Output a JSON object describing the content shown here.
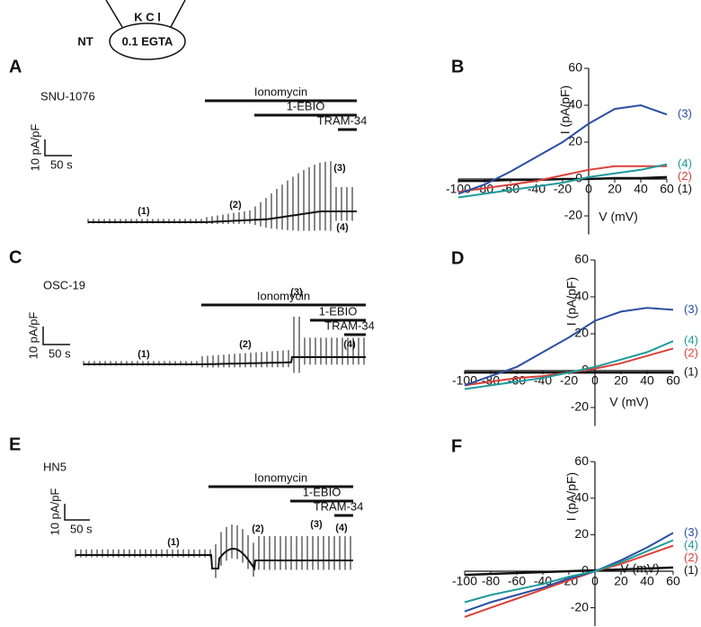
{
  "schematic": {
    "solution": "K C l",
    "pipette": "0.1 EGTA",
    "side": "NT"
  },
  "traces": [
    {
      "panel": "A",
      "cell": "SNU-1076",
      "scale_y": "10 pA/pF",
      "scale_x": "50 s",
      "drugs": [
        "Ionomycin",
        "1-EBIO",
        "TRAM-34"
      ],
      "markers": [
        "(1)",
        "(2)",
        "(3)",
        "(4)"
      ]
    },
    {
      "panel": "C",
      "cell": "OSC-19",
      "scale_y": "10 pA/pF",
      "scale_x": "50 s",
      "drugs": [
        "Ionomycin",
        "1-EBIO",
        "TRAM-34"
      ],
      "markers": [
        "(1)",
        "(2)",
        "(3)",
        "(4)"
      ]
    },
    {
      "panel": "E",
      "cell": "HN5",
      "scale_y": "10 pA/pF",
      "scale_x": "50 s",
      "drugs": [
        "Ionomycin",
        "1-EBIO",
        "TRAM-34"
      ],
      "markers": [
        "(1)",
        "(2)",
        "(3)",
        "(4)"
      ]
    }
  ],
  "chart_data": [
    {
      "type": "line",
      "panel": "B",
      "ylabel": "I (pA/pF)",
      "xlabel": "V (mV)",
      "xlim": [
        -100,
        60
      ],
      "ylim": [
        -30,
        60
      ],
      "xticks": [
        -100,
        -80,
        -60,
        -40,
        -20,
        0,
        20,
        40,
        60
      ],
      "yticks": [
        -20,
        0,
        20,
        40,
        60
      ],
      "x": [
        -100,
        -80,
        -60,
        -40,
        -20,
        0,
        20,
        40,
        60
      ],
      "series": [
        {
          "name": "(1)",
          "color": "#111111",
          "values": [
            -1,
            -1,
            -0.5,
            -0.5,
            0,
            0,
            0.5,
            0.5,
            1
          ]
        },
        {
          "name": "(2)",
          "color": "#d9413a",
          "values": [
            -7,
            -5,
            -3,
            -1,
            2,
            5,
            7,
            7,
            7
          ]
        },
        {
          "name": "(3)",
          "color": "#2b4ea2",
          "values": [
            -8,
            -3,
            4,
            12,
            20,
            30,
            38,
            40,
            35
          ]
        },
        {
          "name": "(4)",
          "color": "#1f9a9a",
          "values": [
            -10,
            -8,
            -6,
            -4,
            -2,
            1,
            3,
            5,
            8
          ]
        }
      ]
    },
    {
      "type": "line",
      "panel": "D",
      "ylabel": "I (pA/pF)",
      "xlabel": "V (mV)",
      "xlim": [
        -100,
        60
      ],
      "ylim": [
        -30,
        60
      ],
      "xticks": [
        -100,
        -80,
        -60,
        -40,
        -20,
        0,
        20,
        40,
        60
      ],
      "yticks": [
        -20,
        0,
        20,
        40,
        60
      ],
      "x": [
        -100,
        -80,
        -60,
        -40,
        -20,
        0,
        20,
        40,
        60
      ],
      "series": [
        {
          "name": "(1)",
          "color": "#111111",
          "values": [
            -1,
            -1,
            -1,
            -1,
            -1,
            -1,
            -1,
            -1,
            -1
          ]
        },
        {
          "name": "(2)",
          "color": "#d9413a",
          "values": [
            -8,
            -6,
            -4,
            -3,
            -1,
            1,
            4,
            8,
            12
          ]
        },
        {
          "name": "(3)",
          "color": "#2b4ea2",
          "values": [
            -8,
            -3,
            2,
            10,
            18,
            27,
            32,
            34,
            33
          ]
        },
        {
          "name": "(4)",
          "color": "#1f9a9a",
          "values": [
            -10,
            -8,
            -6,
            -4,
            -1,
            2,
            6,
            10,
            16
          ]
        }
      ]
    },
    {
      "type": "line",
      "panel": "F",
      "ylabel": "I (pA/pF)",
      "xlabel": "V (mV)",
      "xlim": [
        -100,
        60
      ],
      "ylim": [
        -30,
        60
      ],
      "xticks": [
        -100,
        -80,
        -60,
        -40,
        -20,
        0,
        20,
        40,
        60
      ],
      "yticks": [
        -20,
        0,
        20,
        40,
        60
      ],
      "x": [
        -100,
        -80,
        -60,
        -40,
        -20,
        0,
        20,
        40,
        60
      ],
      "series": [
        {
          "name": "(1)",
          "color": "#111111",
          "values": [
            -2,
            -1.5,
            -1,
            -0.5,
            0,
            0.5,
            1,
            1.5,
            2
          ]
        },
        {
          "name": "(2)",
          "color": "#d9413a",
          "values": [
            -25,
            -20,
            -15,
            -10,
            -5,
            0,
            4,
            9,
            14
          ]
        },
        {
          "name": "(3)",
          "color": "#2b4ea2",
          "values": [
            -22,
            -17,
            -13,
            -9,
            -4,
            0,
            6,
            13,
            21
          ]
        },
        {
          "name": "(4)",
          "color": "#1f9a9a",
          "values": [
            -17,
            -13,
            -10,
            -7,
            -3,
            0,
            5,
            11,
            17
          ]
        }
      ]
    }
  ]
}
